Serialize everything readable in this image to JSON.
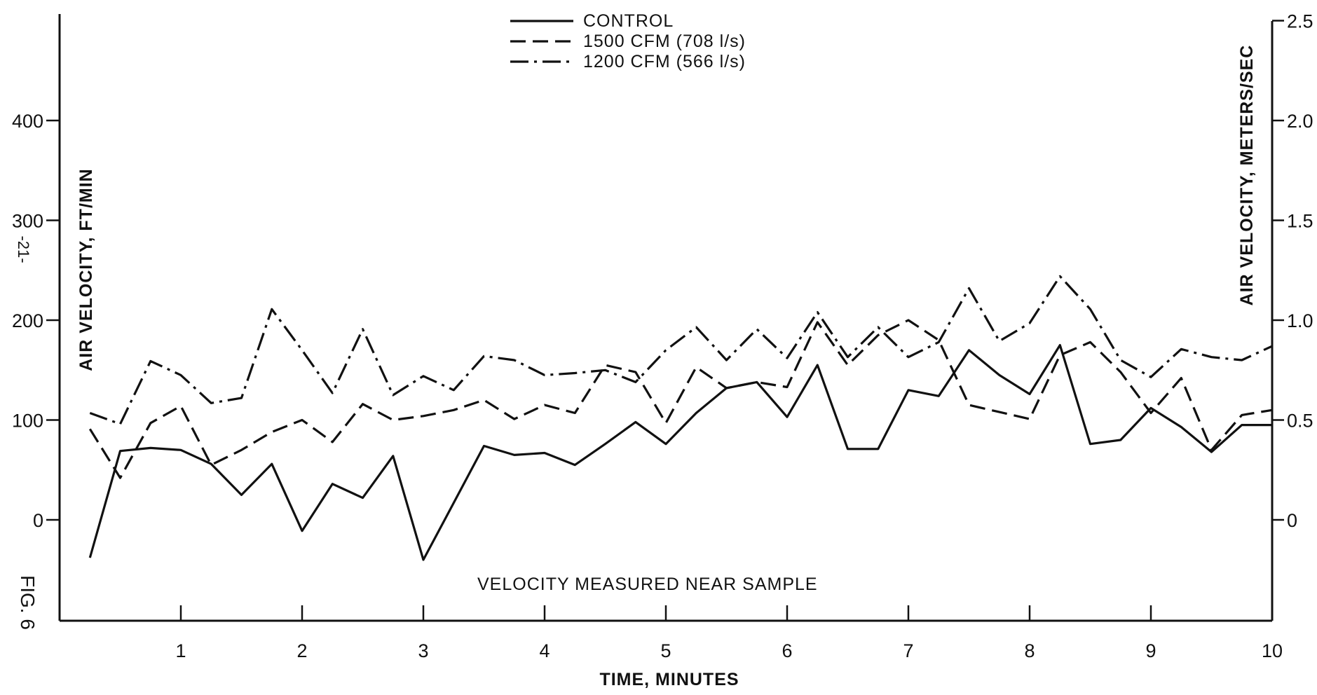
{
  "chart_data": {
    "type": "line",
    "title": "",
    "annotation": "VELOCITY MEASURED NEAR SAMPLE",
    "xlabel": "TIME, MINUTES",
    "ylabel_left": "AIR VELOCITY, FT/MIN",
    "ylabel_right": "AIR VELOCITY, METERS/SEC",
    "xlim": [
      0,
      10
    ],
    "ylim_left": [
      -100,
      500
    ],
    "ylim_right": [
      -0.5,
      2.5
    ],
    "x_ticks": [
      "1",
      "2",
      "3",
      "4",
      "5",
      "6",
      "7",
      "8",
      "9",
      "10"
    ],
    "y_left_ticks": [
      "0",
      "100",
      "200",
      "300",
      "400"
    ],
    "y_right_ticks": [
      "0",
      "0.5",
      "1.0",
      "1.5",
      "2.0",
      "2.5"
    ],
    "legend_position": "top-center",
    "grid": false,
    "series": [
      {
        "name": "CONTROL",
        "dash": "solid",
        "x": [
          0.25,
          0.5,
          0.75,
          1.0,
          1.25,
          1.5,
          1.75,
          2.0,
          2.25,
          2.5,
          2.75,
          3.0,
          3.25,
          3.5,
          3.75,
          4.0,
          4.25,
          4.5,
          4.75,
          5.0,
          5.25,
          5.5,
          5.75,
          6.0,
          6.25,
          6.5,
          6.75,
          7.0,
          7.25,
          7.5,
          7.75,
          8.0,
          8.25,
          8.5,
          8.75,
          9.0,
          9.25,
          9.5,
          9.75,
          10.0
        ],
        "values": [
          -38,
          69,
          72,
          70,
          56,
          25,
          56,
          -11,
          36,
          22,
          64,
          -40,
          17,
          74,
          65,
          67,
          55,
          76,
          98,
          76,
          107,
          132,
          138,
          103,
          155,
          71,
          71,
          130,
          124,
          170,
          145,
          126,
          175,
          76,
          80,
          112,
          93,
          68,
          95,
          95
        ]
      },
      {
        "name": "1500 CFM (708 l/s)",
        "dash": "dashed",
        "x": [
          0.25,
          0.5,
          0.75,
          1.0,
          1.25,
          1.5,
          1.75,
          2.0,
          2.25,
          2.5,
          2.75,
          3.0,
          3.25,
          3.5,
          3.75,
          4.0,
          4.25,
          4.5,
          4.75,
          5.0,
          5.25,
          5.5,
          5.75,
          6.0,
          6.25,
          6.5,
          6.75,
          7.0,
          7.25,
          7.5,
          7.75,
          8.0,
          8.25,
          8.5,
          8.75,
          9.0,
          9.25,
          9.5,
          9.75,
          10.0
        ],
        "values": [
          91,
          42,
          97,
          114,
          55,
          70,
          88,
          100,
          78,
          116,
          100,
          104,
          110,
          120,
          101,
          115,
          107,
          155,
          148,
          97,
          153,
          132,
          138,
          133,
          198,
          155,
          185,
          200,
          180,
          115,
          108,
          101,
          165,
          178,
          148,
          107,
          142,
          70,
          105,
          110
        ]
      },
      {
        "name": "1200 CFM (566 l/s)",
        "dash": "dash-dot",
        "x": [
          0.25,
          0.5,
          0.75,
          1.0,
          1.25,
          1.5,
          1.75,
          2.0,
          2.25,
          2.5,
          2.75,
          3.0,
          3.25,
          3.5,
          3.75,
          4.0,
          4.25,
          4.5,
          4.75,
          5.0,
          5.25,
          5.5,
          5.75,
          6.0,
          6.25,
          6.5,
          6.75,
          7.0,
          7.25,
          7.5,
          7.75,
          8.0,
          8.25,
          8.5,
          8.75,
          9.0,
          9.25,
          9.5,
          9.75,
          10.0
        ],
        "values": [
          107,
          96,
          159,
          145,
          117,
          122,
          211,
          170,
          127,
          191,
          125,
          144,
          130,
          164,
          160,
          145,
          147,
          150,
          138,
          170,
          193,
          160,
          191,
          162,
          208,
          163,
          193,
          163,
          178,
          232,
          179,
          197,
          244,
          211,
          160,
          143,
          171,
          163,
          160,
          174
        ]
      }
    ]
  },
  "margin": {
    "page_number": "-21-",
    "figure_label": "FIG. 6"
  }
}
